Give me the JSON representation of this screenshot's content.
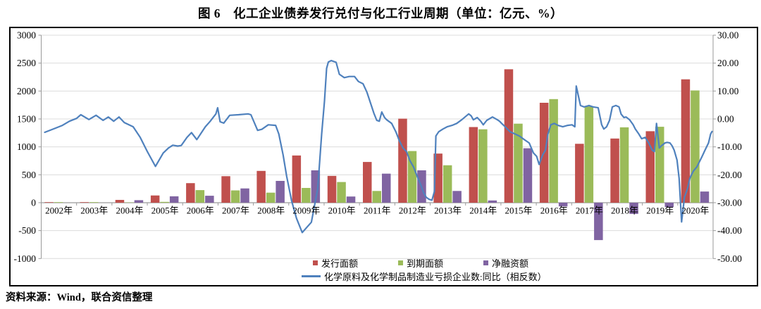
{
  "figure": {
    "title": "图 6　化工企业债券发行兑付与化工行业周期（单位：亿元、%）",
    "source_note": "资料来源：Wind，联合资信整理"
  },
  "chart_data": {
    "type": "bar+line",
    "categories": [
      "2002年",
      "2003年",
      "2004年",
      "2005年",
      "2006年",
      "2007年",
      "2008年",
      "2009年",
      "2010年",
      "2011年",
      "2012年",
      "2013年",
      "2014年",
      "2015年",
      "2016年",
      "2017年",
      "2018年",
      "2019年",
      "2020年"
    ],
    "bar_series": [
      {
        "id": "issuance",
        "name": "发行面额",
        "color": "#C0504D",
        "axis": "left",
        "values": [
          10,
          10,
          50,
          130,
          350,
          475,
          570,
          845,
          480,
          730,
          1505,
          880,
          1355,
          2390,
          1790,
          1055,
          1150,
          1280,
          2210
        ]
      },
      {
        "id": "maturity",
        "name": "到期面额",
        "color": "#9BBB59",
        "axis": "left",
        "values": [
          10,
          10,
          5,
          15,
          225,
          220,
          180,
          265,
          370,
          210,
          925,
          670,
          1315,
          1415,
          1855,
          1725,
          1350,
          1360,
          2010
        ]
      },
      {
        "id": "net-financing",
        "name": "净融资额",
        "color": "#8064A2",
        "axis": "left",
        "values": [
          0,
          0,
          45,
          115,
          125,
          255,
          390,
          580,
          110,
          520,
          580,
          210,
          40,
          975,
          -65,
          -670,
          -200,
          -80,
          200
        ]
      }
    ],
    "line_series": {
      "id": "loss-enterprises-yoy",
      "name": "化学原料及化学制品制造业亏损企业数:同比（相反数）",
      "color": "#4F81BD",
      "axis": "right",
      "points": [
        [
          0.1,
          -4.8
        ],
        [
          0.4,
          -3.3
        ],
        [
          0.6,
          -2.3
        ],
        [
          0.8,
          -0.8
        ],
        [
          1.0,
          0.2
        ],
        [
          1.12,
          1.5
        ],
        [
          1.35,
          -0.2
        ],
        [
          1.55,
          1.3
        ],
        [
          1.75,
          -0.5
        ],
        [
          1.9,
          0.7
        ],
        [
          2.05,
          -0.8
        ],
        [
          2.2,
          0.7
        ],
        [
          2.35,
          -1.3
        ],
        [
          2.6,
          -2.8
        ],
        [
          2.8,
          -6.6
        ],
        [
          3.0,
          -11.7
        ],
        [
          3.23,
          -17.0
        ],
        [
          3.45,
          -12.2
        ],
        [
          3.6,
          -10.4
        ],
        [
          3.72,
          -9.4
        ],
        [
          3.86,
          -9.7
        ],
        [
          3.96,
          -9.5
        ],
        [
          4.12,
          -6.6
        ],
        [
          4.25,
          -4.9
        ],
        [
          4.4,
          -7.4
        ],
        [
          4.64,
          -2.8
        ],
        [
          4.78,
          -0.8
        ],
        [
          4.94,
          1.8
        ],
        [
          4.99,
          4.0
        ],
        [
          5.06,
          -1.0
        ],
        [
          5.16,
          -1.5
        ],
        [
          5.33,
          1.3
        ],
        [
          5.58,
          1.5
        ],
        [
          5.85,
          1.8
        ],
        [
          5.93,
          1.5
        ],
        [
          6.12,
          -4.1
        ],
        [
          6.24,
          -3.7
        ],
        [
          6.42,
          -2.1
        ],
        [
          6.63,
          -2.3
        ],
        [
          6.72,
          -5.4
        ],
        [
          6.84,
          -12.9
        ],
        [
          6.94,
          -20.5
        ],
        [
          7.08,
          -29.3
        ],
        [
          7.22,
          -35.6
        ],
        [
          7.38,
          -40.7
        ],
        [
          7.64,
          -37.0
        ],
        [
          7.82,
          -25.0
        ],
        [
          7.93,
          -5.4
        ],
        [
          8.01,
          6.4
        ],
        [
          8.07,
          18.1
        ],
        [
          8.12,
          20.4
        ],
        [
          8.2,
          20.9
        ],
        [
          8.34,
          20.3
        ],
        [
          8.43,
          16.0
        ],
        [
          8.57,
          14.8
        ],
        [
          8.71,
          15.2
        ],
        [
          8.86,
          15.2
        ],
        [
          8.97,
          13.4
        ],
        [
          9.1,
          12.6
        ],
        [
          9.21,
          9.6
        ],
        [
          9.31,
          5.8
        ],
        [
          9.41,
          2.0
        ],
        [
          9.49,
          -0.5
        ],
        [
          9.56,
          -0.8
        ],
        [
          9.63,
          2.5
        ],
        [
          9.71,
          0.5
        ],
        [
          9.77,
          -0.3
        ],
        [
          9.91,
          -1.6
        ],
        [
          10.03,
          -4.6
        ],
        [
          10.13,
          -7.9
        ],
        [
          10.23,
          -10.4
        ],
        [
          10.33,
          -11.7
        ],
        [
          10.43,
          -15.0
        ],
        [
          10.53,
          -17.2
        ],
        [
          10.63,
          -20.5
        ],
        [
          10.73,
          -23.5
        ],
        [
          10.81,
          -26.3
        ],
        [
          10.89,
          -28.1
        ],
        [
          10.97,
          -28.8
        ],
        [
          11.05,
          -29.1
        ],
        [
          11.12,
          -26.0
        ],
        [
          11.16,
          -6.1
        ],
        [
          11.24,
          -4.6
        ],
        [
          11.36,
          -3.6
        ],
        [
          11.48,
          -2.8
        ],
        [
          11.62,
          -2.3
        ],
        [
          11.75,
          -1.6
        ],
        [
          11.89,
          -0.3
        ],
        [
          12.09,
          1.8
        ],
        [
          12.16,
          1.1
        ],
        [
          12.22,
          -0.3
        ],
        [
          12.33,
          0.5
        ],
        [
          12.43,
          -0.8
        ],
        [
          12.5,
          -2.1
        ],
        [
          12.6,
          -0.5
        ],
        [
          12.76,
          0.7
        ],
        [
          12.9,
          -0.3
        ],
        [
          12.96,
          -0.8
        ],
        [
          13.02,
          -1.6
        ],
        [
          13.12,
          -2.8
        ],
        [
          13.26,
          -4.6
        ],
        [
          13.4,
          -5.4
        ],
        [
          13.52,
          -6.1
        ],
        [
          13.66,
          -7.4
        ],
        [
          13.8,
          -8.6
        ],
        [
          13.92,
          -12.2
        ],
        [
          14.01,
          -13.4
        ],
        [
          14.08,
          -16.3
        ],
        [
          14.18,
          -12.9
        ],
        [
          14.26,
          -11.2
        ],
        [
          14.33,
          -5.4
        ],
        [
          14.41,
          -2.1
        ],
        [
          14.51,
          -1.6
        ],
        [
          14.61,
          -2.3
        ],
        [
          14.75,
          -2.8
        ],
        [
          14.89,
          -2.3
        ],
        [
          15.01,
          -2.1
        ],
        [
          15.09,
          -2.8
        ],
        [
          15.13,
          11.8
        ],
        [
          15.25,
          4.8
        ],
        [
          15.35,
          4.3
        ],
        [
          15.49,
          4.8
        ],
        [
          15.61,
          4.3
        ],
        [
          15.75,
          4.0
        ],
        [
          15.85,
          -2.1
        ],
        [
          15.91,
          -3.6
        ],
        [
          15.99,
          -2.8
        ],
        [
          16.07,
          -0.5
        ],
        [
          16.15,
          4.3
        ],
        [
          16.25,
          4.8
        ],
        [
          16.34,
          4.3
        ],
        [
          16.4,
          1.7
        ],
        [
          16.48,
          0.5
        ],
        [
          16.54,
          0.7
        ],
        [
          16.64,
          -0.3
        ],
        [
          16.74,
          -2.1
        ],
        [
          16.8,
          -3.6
        ],
        [
          16.9,
          -5.4
        ],
        [
          16.98,
          -7.1
        ],
        [
          17.08,
          -6.6
        ],
        [
          17.18,
          -8.6
        ],
        [
          17.28,
          -11.2
        ],
        [
          17.34,
          -11.7
        ],
        [
          17.4,
          -1.6
        ],
        [
          17.48,
          -10.4
        ],
        [
          17.54,
          -9.6
        ],
        [
          17.64,
          -8.6
        ],
        [
          17.7,
          -8.4
        ],
        [
          17.78,
          -8.6
        ],
        [
          17.84,
          -9.6
        ],
        [
          17.9,
          -11.2
        ],
        [
          17.98,
          -14.7
        ],
        [
          18.04,
          -21.3
        ],
        [
          18.11,
          -36.9
        ],
        [
          18.19,
          -28.0
        ],
        [
          18.28,
          -24.8
        ],
        [
          18.34,
          -21.3
        ],
        [
          18.44,
          -18.7
        ],
        [
          18.54,
          -17.2
        ],
        [
          18.68,
          -13.7
        ],
        [
          18.77,
          -11.2
        ],
        [
          18.87,
          -8.6
        ],
        [
          18.93,
          -5.4
        ],
        [
          18.97,
          -4.5
        ]
      ]
    },
    "left_axis": {
      "min": -1000,
      "max": 3000,
      "step": 500,
      "tick_labels": [
        "3000",
        "2500",
        "2000",
        "1500",
        "1000",
        "500",
        "0",
        "-500",
        "-1000"
      ]
    },
    "right_axis": {
      "min": -50,
      "max": 30,
      "step": 10,
      "tick_labels": [
        "30.00",
        "20.00",
        "10.00",
        "0.00",
        "-10.00",
        "-20.00",
        "-30.00",
        "-40.00",
        "-50.00"
      ]
    },
    "grid": true,
    "legend_position": "bottom",
    "colors": {
      "grid": "#DCDCDC",
      "axis": "#9a9a9a",
      "frame": "#000000",
      "text": "#000000"
    }
  }
}
